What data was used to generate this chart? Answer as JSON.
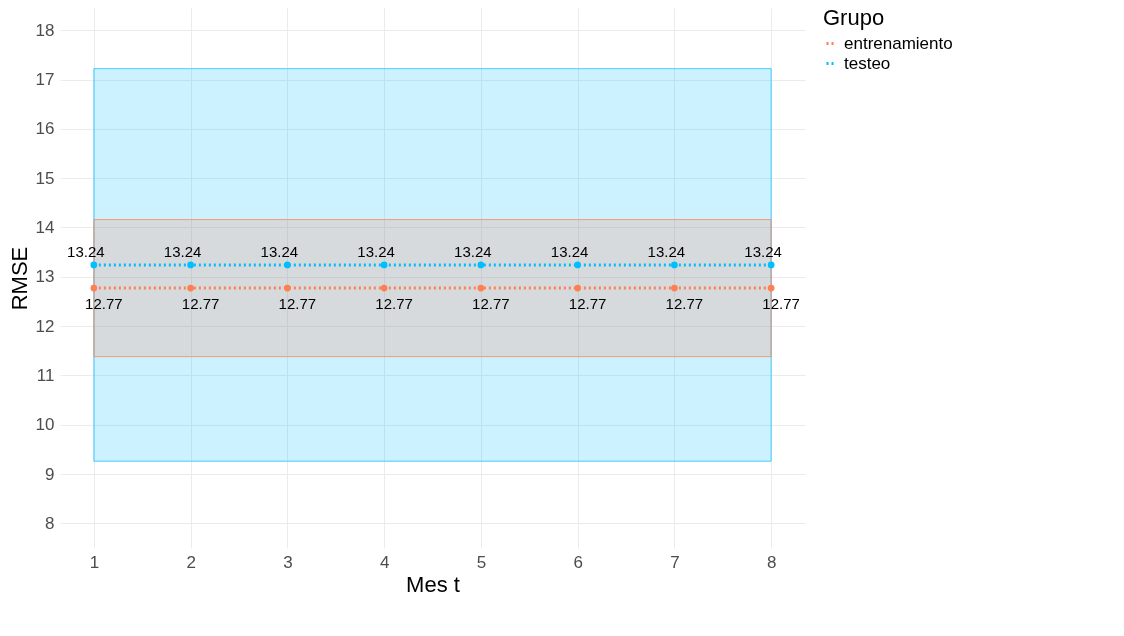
{
  "chart_data": {
    "type": "line",
    "xlabel": "Mes t",
    "ylabel": "RMSE",
    "legend_title": "Grupo",
    "x": [
      1,
      2,
      3,
      4,
      5,
      6,
      7,
      8
    ],
    "series": [
      {
        "name": "entrenamiento",
        "color": "#ff7f50",
        "values": [
          12.77,
          12.77,
          12.77,
          12.77,
          12.77,
          12.77,
          12.77,
          12.77
        ],
        "lower": [
          11.38,
          11.38,
          11.38,
          11.38,
          11.38,
          11.38,
          11.38,
          11.38
        ],
        "upper": [
          14.16,
          14.16,
          14.16,
          14.16,
          14.16,
          14.16,
          14.16,
          14.16
        ]
      },
      {
        "name": "testeo",
        "color": "#00bfff",
        "values": [
          13.24,
          13.24,
          13.24,
          13.24,
          13.24,
          13.24,
          13.24,
          13.24
        ],
        "lower": [
          9.26,
          9.26,
          9.26,
          9.26,
          9.26,
          9.26,
          9.26,
          9.26
        ],
        "upper": [
          17.22,
          17.22,
          17.22,
          17.22,
          17.22,
          17.22,
          17.22,
          17.22
        ]
      }
    ],
    "xlim": [
      0.65,
      8.35
    ],
    "xticks": [
      1,
      2,
      3,
      4,
      5,
      6,
      7,
      8
    ],
    "ylim": [
      7.5,
      18.45
    ],
    "yticks": [
      8,
      9,
      10,
      11,
      12,
      13,
      14,
      15,
      16,
      17,
      18
    ],
    "grid": true,
    "legend": "right",
    "marker": "circle",
    "line_style": "dotted",
    "data_labels": true
  }
}
